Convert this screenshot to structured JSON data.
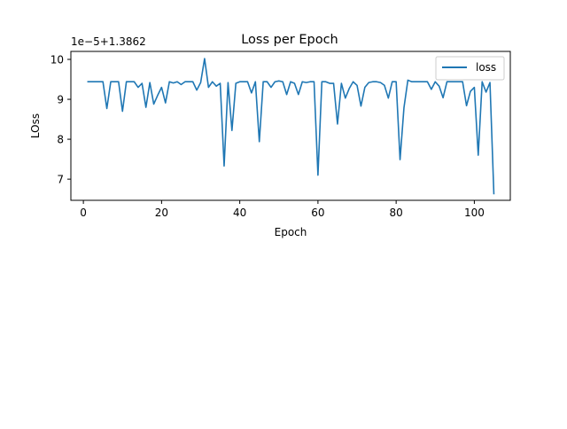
{
  "chart_data": {
    "type": "line",
    "title": "Loss per Epoch",
    "xlabel": "Epoch",
    "ylabel": "LOss",
    "offset_label": "1e−5+1.3862",
    "x_ticks": [
      "0",
      "20",
      "40",
      "60",
      "80",
      "100"
    ],
    "y_ticks": [
      "7",
      "8",
      "9",
      "10"
    ],
    "xlim": [
      -3.2,
      109.2
    ],
    "ylim": [
      6.47,
      10.2
    ],
    "legend": {
      "placement": "top-right",
      "entries": [
        "loss"
      ]
    },
    "grid": false,
    "series": [
      {
        "name": "loss",
        "color": "#1f77b4",
        "x": [
          1,
          2,
          3,
          4,
          5,
          6,
          7,
          8,
          9,
          10,
          11,
          12,
          13,
          14,
          15,
          16,
          17,
          18,
          19,
          20,
          21,
          22,
          23,
          24,
          25,
          26,
          27,
          28,
          29,
          30,
          31,
          32,
          33,
          34,
          35,
          36,
          37,
          38,
          39,
          40,
          41,
          42,
          43,
          44,
          45,
          46,
          47,
          48,
          49,
          50,
          51,
          52,
          53,
          54,
          55,
          56,
          57,
          58,
          59,
          60,
          61,
          62,
          63,
          64,
          65,
          66,
          67,
          68,
          69,
          70,
          71,
          72,
          73,
          74,
          75,
          76,
          77,
          78,
          79,
          80,
          81,
          82,
          83,
          84,
          85,
          86,
          87,
          88,
          89,
          90,
          91,
          92,
          93,
          94,
          95,
          96,
          97,
          98,
          99,
          100,
          101,
          102,
          103,
          104,
          105
        ],
        "values": [
          9.44,
          9.44,
          9.44,
          9.44,
          9.44,
          8.77,
          9.44,
          9.44,
          9.44,
          8.7,
          9.44,
          9.44,
          9.44,
          9.3,
          9.4,
          8.8,
          9.42,
          8.88,
          9.1,
          9.3,
          8.91,
          9.44,
          9.41,
          9.44,
          9.37,
          9.44,
          9.44,
          9.44,
          9.23,
          9.42,
          10.02,
          9.3,
          9.44,
          9.33,
          9.4,
          7.33,
          9.42,
          8.22,
          9.4,
          9.44,
          9.44,
          9.44,
          9.16,
          9.44,
          7.94,
          9.44,
          9.44,
          9.3,
          9.44,
          9.46,
          9.44,
          9.12,
          9.44,
          9.4,
          9.12,
          9.44,
          9.42,
          9.44,
          9.44,
          7.1,
          9.44,
          9.44,
          9.4,
          9.4,
          8.38,
          9.4,
          9.03,
          9.27,
          9.44,
          9.35,
          8.83,
          9.3,
          9.42,
          9.44,
          9.44,
          9.42,
          9.35,
          9.03,
          9.44,
          9.44,
          7.49,
          8.79,
          9.48,
          9.44,
          9.44,
          9.44,
          9.44,
          9.44,
          9.25,
          9.44,
          9.33,
          9.04,
          9.44,
          9.44,
          9.44,
          9.44,
          9.44,
          8.84,
          9.2,
          9.3,
          7.6,
          9.44,
          9.18,
          9.42,
          6.62
        ]
      }
    ]
  }
}
